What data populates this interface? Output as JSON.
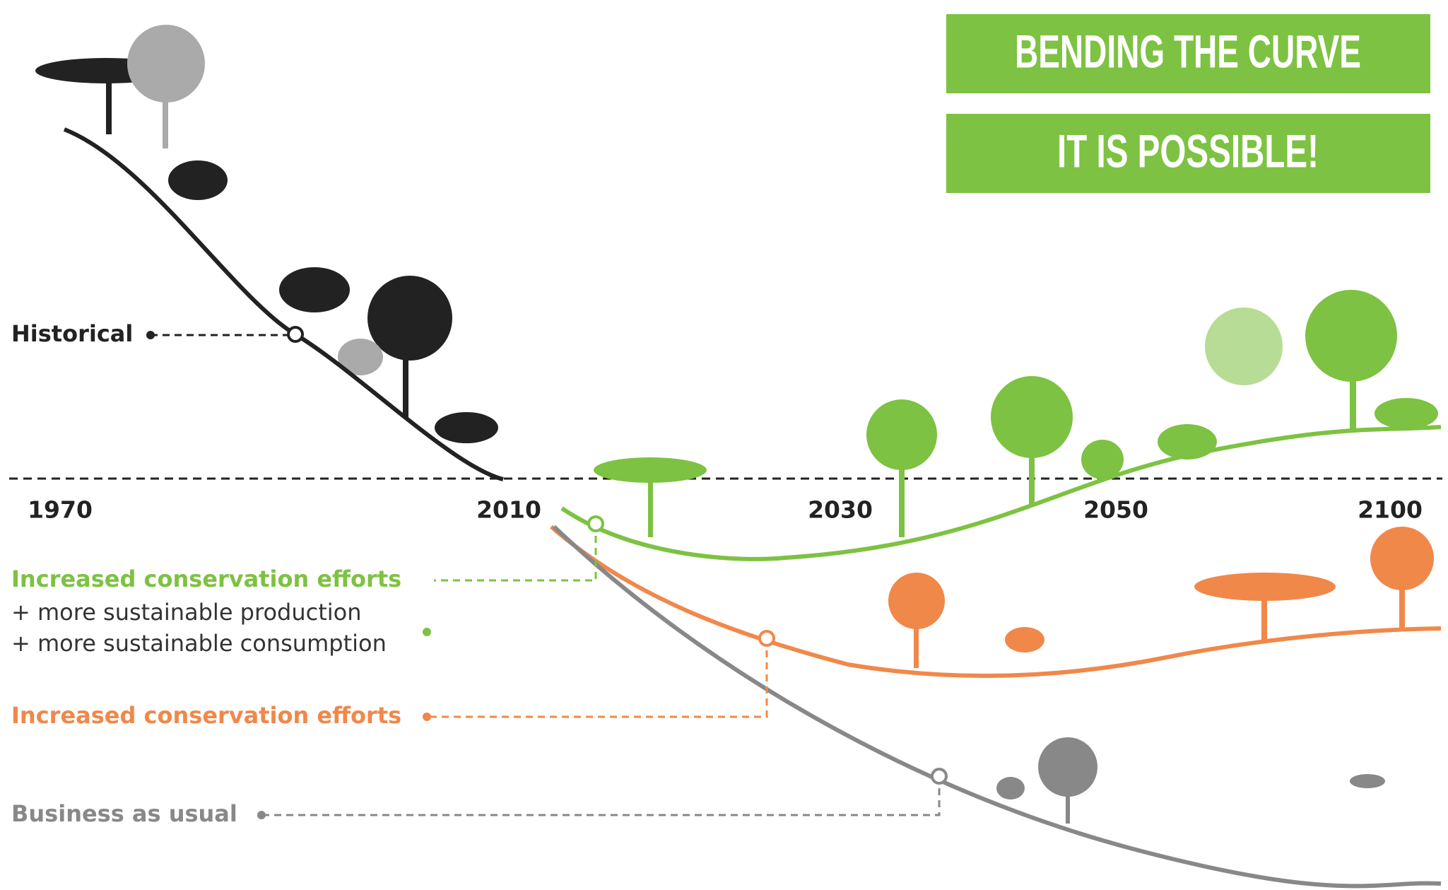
{
  "header": {
    "title": "BENDING THE CURVE",
    "subtitle": "IT IS POSSIBLE!"
  },
  "axis": {
    "years": [
      "1970",
      "2010",
      "2030",
      "2050",
      "2100"
    ]
  },
  "curves": {
    "historical": "Historical",
    "restoration": {
      "label": "Increased conservation efforts",
      "lines": [
        "+ more sustainable production",
        "+ more sustainable consumption"
      ]
    },
    "conservation": "Increased conservation efforts",
    "business_as_usual": "Business as usual"
  }
}
